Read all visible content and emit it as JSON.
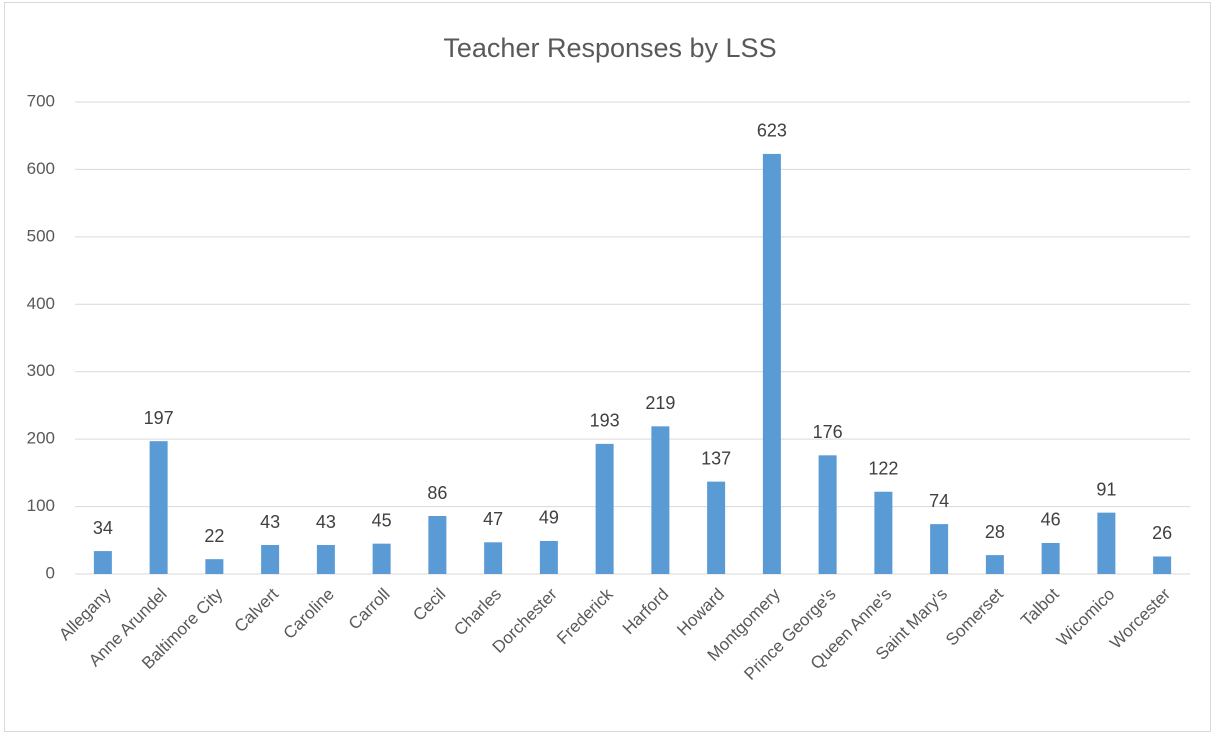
{
  "chart_data": {
    "type": "bar",
    "title": "Teacher Responses by LSS",
    "categories": [
      "Allegany",
      "Anne Arundel",
      "Baltimore City",
      "Calvert",
      "Caroline",
      "Carroll",
      "Cecil",
      "Charles",
      "Dorchester",
      "Frederick",
      "Harford",
      "Howard",
      "Montgomery",
      "Prince George's",
      "Queen Anne's",
      "Saint Mary's",
      "Somerset",
      "Talbot",
      "Wicomico",
      "Worcester"
    ],
    "values": [
      34,
      197,
      22,
      43,
      43,
      45,
      86,
      47,
      49,
      193,
      219,
      137,
      623,
      176,
      122,
      74,
      28,
      46,
      91,
      26
    ],
    "color": "#5b9bd5",
    "ylim": [
      0,
      700
    ],
    "yticks": [
      0,
      100,
      200,
      300,
      400,
      500,
      600,
      700
    ],
    "grid": true
  }
}
